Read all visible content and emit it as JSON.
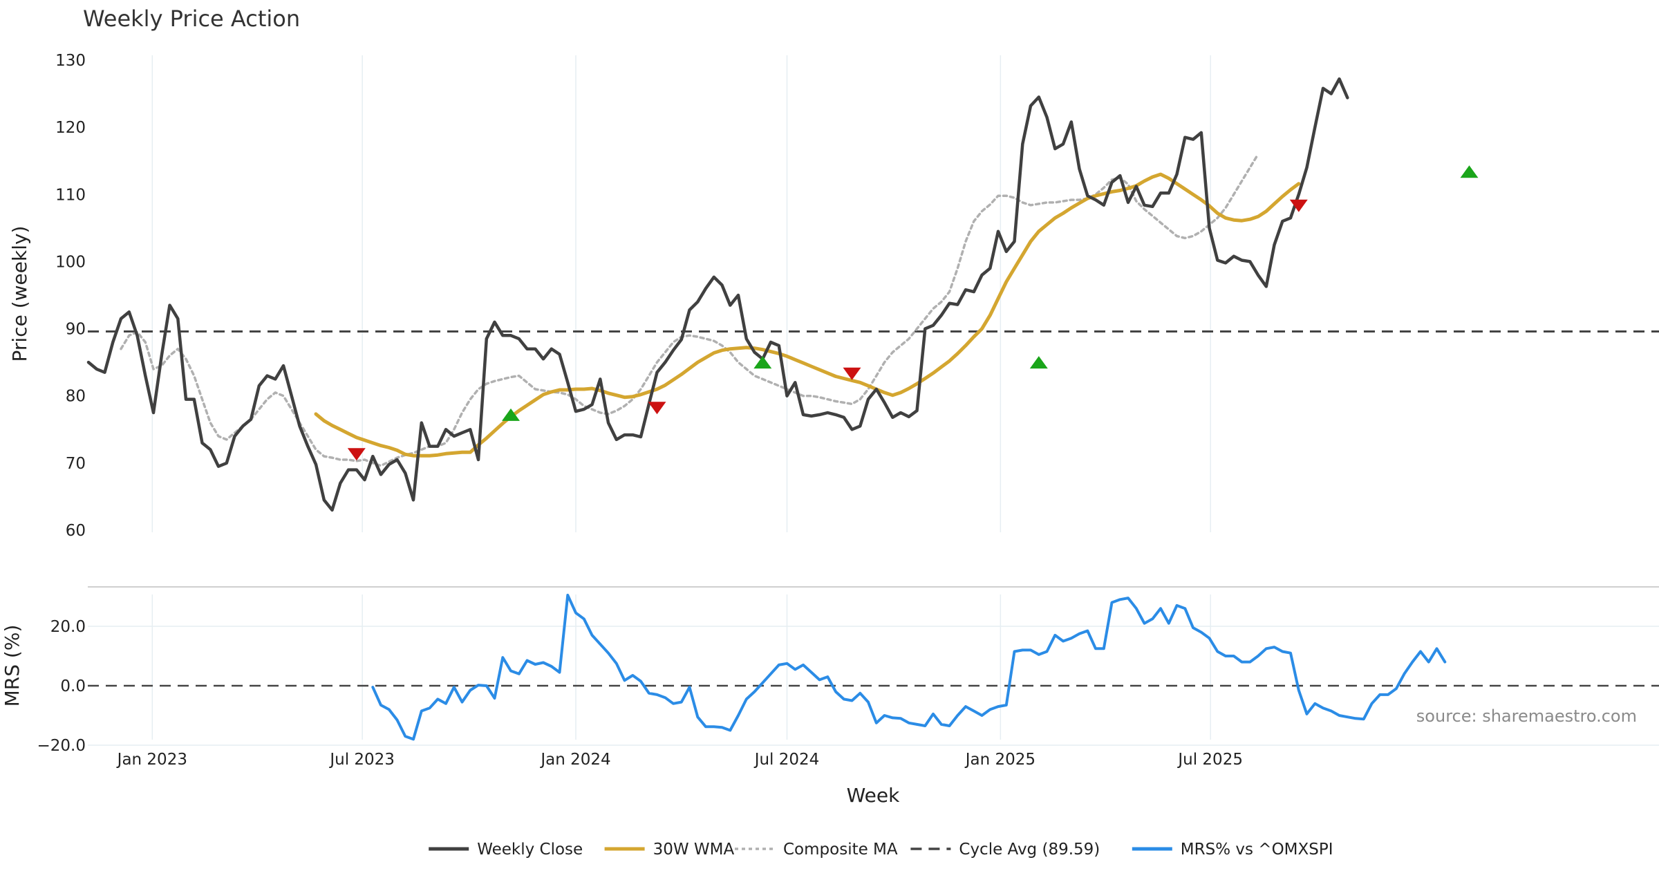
{
  "chart_data": {
    "type": "line",
    "title": "Weekly Price Action",
    "source": "source: sharemaestro.com",
    "xlabel": "Week",
    "x_ticks": [
      "Jan 2023",
      "Jul 2023",
      "Jan 2024",
      "Jul 2024",
      "Jan 2025",
      "Jul 2025"
    ],
    "start_date": "2022-11-07",
    "interval_days": 7,
    "legend": {
      "placement": "bottom-center",
      "items": [
        {
          "label": "Weekly Close",
          "style": "solid",
          "color": "#404040"
        },
        {
          "label": "30W WMA",
          "style": "solid",
          "color": "#d4a630"
        },
        {
          "label": "Composite MA",
          "style": "dotted",
          "color": "#b0b0b0"
        },
        {
          "label": "Cycle Avg (89.59)",
          "style": "dashed",
          "color": "#444444"
        },
        {
          "label": "MRS% vs ^OMXSPI",
          "style": "solid",
          "color": "#2b8ce6"
        }
      ]
    },
    "price_panel": {
      "ylabel": "Price (weekly)",
      "ylim": [
        60,
        130
      ],
      "yticks": [
        60,
        70,
        80,
        90,
        100,
        110,
        120,
        130
      ],
      "cycle_avg": 89.59,
      "series": [
        {
          "name": "Weekly Close",
          "color": "#404040",
          "start_index": 0,
          "values": [
            85,
            84,
            83.5,
            88,
            91.5,
            92.5,
            89,
            83,
            77.5,
            86,
            93.5,
            91.5,
            79.5,
            79.5,
            73,
            72,
            69.5,
            70,
            74,
            75.5,
            76.5,
            81.5,
            83,
            82.5,
            84.5,
            80,
            75.5,
            72.5,
            69.8,
            64.5,
            63,
            67,
            69,
            69,
            67.5,
            71,
            68.3,
            69.8,
            70.5,
            68.5,
            64.5,
            76,
            72.5,
            72.5,
            75,
            74,
            74.5,
            75,
            70.5,
            88.5,
            91,
            89,
            89,
            88.5,
            87,
            87,
            85.5,
            87,
            86.2,
            82,
            77.7,
            78,
            78.7,
            82.5,
            76,
            73.5,
            74.2,
            74.2,
            73.9,
            78.8,
            83.5,
            85,
            86.8,
            88.4,
            92.8,
            94,
            96,
            97.7,
            96.5,
            93.5,
            95,
            88.5,
            86.5,
            85.5,
            88,
            87.5,
            80,
            82,
            77.2,
            77,
            77.2,
            77.5,
            77.2,
            76.8,
            75,
            75.5,
            79.5,
            81,
            79,
            76.8,
            77.5,
            76.9,
            77.8,
            90,
            90.5,
            92,
            93.8,
            93.6,
            95.8,
            95.5,
            98,
            99,
            104.5,
            101.5,
            103,
            117.5,
            123.2,
            124.5,
            121.5,
            116.8,
            117.5,
            120.8,
            113.8,
            109.8,
            109.2,
            108.4,
            111.8,
            112.8,
            108.8,
            111.2,
            108.4,
            108.2,
            110.2,
            110.2,
            113,
            118.5,
            118.2,
            119.2,
            105,
            100.2,
            99.8,
            100.8,
            100.2,
            100,
            98,
            96.3,
            102.5,
            106,
            106.5,
            110,
            114,
            120,
            125.8,
            125,
            127.2,
            124.4
          ]
        },
        {
          "name": "Composite MA",
          "color": "#b0b0b0",
          "start_index": 4,
          "values": [
            87,
            89,
            89.5,
            88,
            84,
            84.5,
            86,
            87,
            85.5,
            83,
            79.5,
            76,
            74,
            73.5,
            74.5,
            75.5,
            76.5,
            78,
            79.5,
            80.5,
            80,
            78,
            76,
            74,
            72,
            71,
            70.8,
            70.5,
            70.5,
            70.3,
            70.5,
            70,
            69.6,
            70.2,
            70.8,
            71.2,
            71.5,
            72,
            72.5,
            72.5,
            73,
            75,
            77.5,
            79.5,
            81,
            81.8,
            82.2,
            82.5,
            82.8,
            83,
            82,
            81,
            80.8,
            80.6,
            80.5,
            80.2,
            79.5,
            78.5,
            78,
            77.5,
            77.3,
            77.8,
            78.5,
            79.5,
            81,
            83,
            85,
            86.5,
            88,
            88.8,
            89,
            88.8,
            88.5,
            88.2,
            87.5,
            86.5,
            85,
            84,
            83,
            82.5,
            82,
            81.5,
            81,
            80.5,
            80,
            80,
            79.8,
            79.5,
            79.2,
            79,
            78.8,
            79.5,
            81,
            83,
            85,
            86.5,
            87.5,
            88.5,
            90,
            91.5,
            93,
            94,
            95.5,
            99,
            103,
            106,
            107.5,
            108.5,
            109.8,
            109.8,
            109.5,
            108.8,
            108.4,
            108.6,
            108.8,
            108.8,
            109,
            109.2,
            109.2,
            109.4,
            110,
            111,
            112.2,
            112.5,
            111.5,
            109,
            107.8,
            106.8,
            105.8,
            104.8,
            103.8,
            103.5,
            103.8,
            104.5,
            105.5,
            106.5,
            108,
            110,
            112,
            114,
            116
          ]
        },
        {
          "name": "30W WMA",
          "color": "#d4a630",
          "start_index": 28,
          "values": [
            77.3,
            76.3,
            75.6,
            75,
            74.4,
            73.8,
            73.4,
            73,
            72.6,
            72.3,
            71.9,
            71.3,
            71.1,
            71.1,
            71.1,
            71.2,
            71.4,
            71.5,
            71.6,
            71.6,
            72.7,
            73.7,
            74.8,
            75.9,
            76.9,
            77.8,
            78.6,
            79.4,
            80.2,
            80.6,
            80.9,
            80.9,
            81,
            81,
            81.1,
            80.8,
            80.4,
            80.1,
            79.8,
            79.9,
            80.2,
            80.6,
            81,
            81.6,
            82.4,
            83.2,
            84.1,
            85,
            85.7,
            86.4,
            86.8,
            87,
            87.1,
            87.2,
            87.1,
            86.9,
            86.6,
            86.3,
            85.9,
            85.4,
            84.9,
            84.4,
            83.9,
            83.4,
            82.9,
            82.6,
            82.3,
            82,
            81.5,
            81,
            80.5,
            80.1,
            80.5,
            81.1,
            81.8,
            82.6,
            83.4,
            84.3,
            85.2,
            86.3,
            87.5,
            88.8,
            90,
            92,
            94.5,
            97,
            99,
            101,
            103,
            104.5,
            105.5,
            106.5,
            107.2,
            108,
            108.7,
            109.4,
            109.8,
            110.1,
            110.4,
            110.6,
            110.9,
            111.3,
            112,
            112.6,
            113,
            112.4,
            111.6,
            110.8,
            110,
            109.2,
            108.3,
            107.2,
            106.5,
            106.2,
            106.1,
            106.3,
            106.7,
            107.5,
            108.6,
            109.7,
            110.7,
            111.6
          ]
        },
        {
          "name": "MRS% vs ^OMXSPI",
          "panel": "mrs",
          "color": "#2b8ce6",
          "start_index": 35,
          "values": [
            -0.5,
            -6.5,
            -8,
            -11.5,
            -17,
            -18,
            -8.5,
            -7.5,
            -4.5,
            -6,
            -0.5,
            -5.5,
            -1.5,
            0.2,
            0,
            -4.2,
            9.5,
            5,
            4,
            8.5,
            7.2,
            7.8,
            6.5,
            4.5,
            30.5,
            24.5,
            22.5,
            17,
            14,
            11,
            7.5,
            1.8,
            3.5,
            1.5,
            -2.5,
            -3,
            -4,
            -6,
            -5.5,
            -0.5,
            -10.5,
            -13.8,
            -13.8,
            -14,
            -15,
            -10,
            -4.5,
            -2,
            1,
            4,
            7,
            7.5,
            5.5,
            7,
            4.5,
            2,
            3,
            -2,
            -4.5,
            -5,
            -2.5,
            -5.5,
            -12.5,
            -10,
            -10.8,
            -11,
            -12.5,
            -13,
            -13.5,
            -9.5,
            -13,
            -13.5,
            -10,
            -7,
            -8.5,
            -10,
            -8,
            -7,
            -6.5,
            11.5,
            12,
            12,
            10.5,
            11.5,
            17,
            15,
            16,
            17.5,
            18.5,
            12.5,
            12.5,
            28,
            29,
            29.5,
            26,
            21,
            22.5,
            26,
            21,
            27,
            26,
            19.5,
            18,
            16,
            11.5,
            10,
            10,
            8,
            8,
            10,
            12.5,
            13,
            11.5,
            11,
            -1.5,
            -9.5,
            -6,
            -7.5,
            -8.5,
            -10,
            -10.5,
            -11,
            -11.2,
            -6,
            -3,
            -3,
            -1,
            4,
            8,
            11.5,
            8,
            12.5,
            8
          ]
        }
      ]
    },
    "mrs_panel": {
      "ylabel": "MRS (%)",
      "ylim": [
        -20,
        31
      ],
      "yticks": [
        -20.0,
        0.0,
        20.0
      ],
      "ytick_labels": [
        "−20.0",
        "0.0",
        "20.0"
      ],
      "zero_line": 0
    },
    "signals": [
      {
        "type": "down",
        "index": 33,
        "value": 71.3
      },
      {
        "type": "up",
        "index": 52,
        "value": 77.2
      },
      {
        "type": "down",
        "index": 70,
        "value": 78.2
      },
      {
        "type": "up",
        "index": 83,
        "value": 85
      },
      {
        "type": "down",
        "index": 94,
        "value": 83.3
      },
      {
        "type": "up",
        "index": 117,
        "value": 85
      },
      {
        "type": "down",
        "index": 149,
        "value": 108.3
      },
      {
        "type": "up",
        "index": 170,
        "value": 113.4
      }
    ],
    "colors": {
      "up_marker": "#1aa51a",
      "down_marker": "#cc1111",
      "grid": "#e6eef2"
    }
  }
}
